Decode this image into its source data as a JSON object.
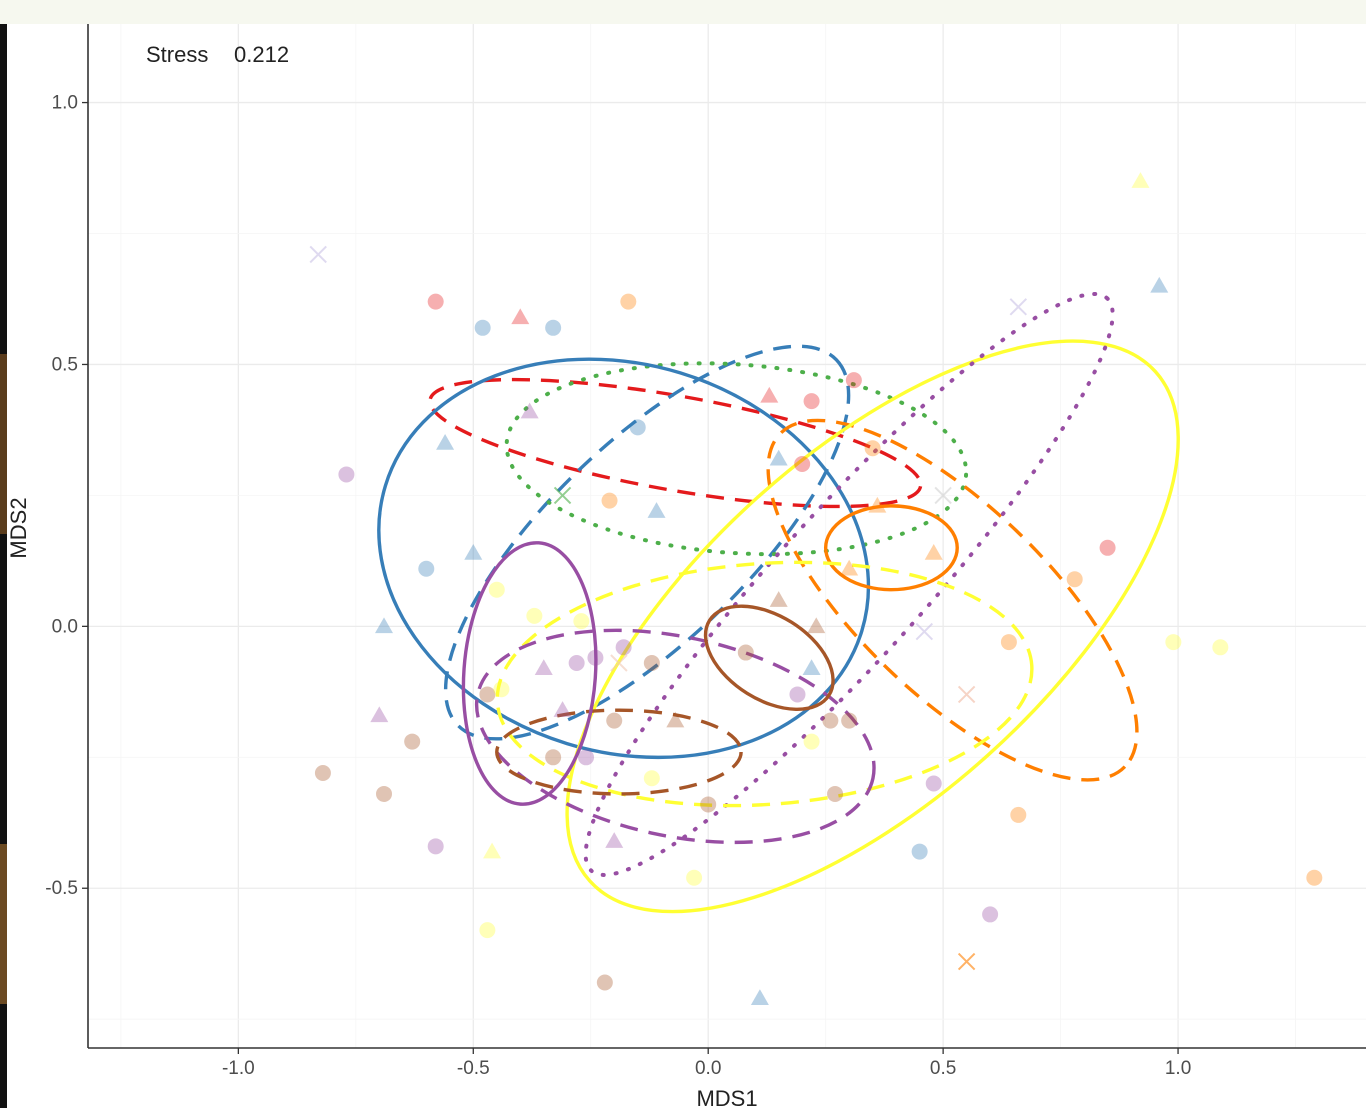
{
  "chart_data": {
    "type": "scatter",
    "title": "",
    "annotation": {
      "label": "Stress",
      "value": "0.212"
    },
    "xlabel": "MDS1",
    "ylabel": "MDS2",
    "xlim": [
      -1.32,
      1.4
    ],
    "ylim": [
      -0.805,
      1.15
    ],
    "x_ticks": [
      {
        "value": -1.0,
        "label": "-1.0"
      },
      {
        "value": -0.5,
        "label": "-0.5"
      },
      {
        "value": 0.0,
        "label": "0.0"
      },
      {
        "value": 0.5,
        "label": "0.5"
      },
      {
        "value": 1.0,
        "label": "1.0"
      }
    ],
    "y_ticks": [
      {
        "value": -0.5,
        "label": "-0.5"
      },
      {
        "value": 0.0,
        "label": "0.0"
      },
      {
        "value": 0.5,
        "label": "0.5"
      },
      {
        "value": 1.0,
        "label": "1.0"
      }
    ],
    "grid": true,
    "legend": "none",
    "colors": {
      "red": "#e41a1c",
      "blue": "#377eb8",
      "green": "#4daf4a",
      "purple": "#984ea3",
      "orange": "#ff7f00",
      "yellow": "#ffff33",
      "brown": "#a65628",
      "plotBorder": "#333333",
      "grid": "#ebebeb"
    },
    "points": [
      {
        "x": -0.83,
        "y": 0.71,
        "color": "#c9c2e6",
        "shape": "cross"
      },
      {
        "x": -0.58,
        "y": 0.62,
        "color": "#e41a1c",
        "shape": "circle"
      },
      {
        "x": -0.48,
        "y": 0.57,
        "color": "#377eb8",
        "shape": "circle"
      },
      {
        "x": -0.4,
        "y": 0.59,
        "color": "#e41a1c",
        "shape": "triangle"
      },
      {
        "x": -0.33,
        "y": 0.57,
        "color": "#377eb8",
        "shape": "circle"
      },
      {
        "x": -0.17,
        "y": 0.62,
        "color": "#ff7f00",
        "shape": "circle"
      },
      {
        "x": -0.38,
        "y": 0.41,
        "color": "#984ea3",
        "shape": "triangle"
      },
      {
        "x": -0.15,
        "y": 0.38,
        "color": "#377eb8",
        "shape": "circle"
      },
      {
        "x": -0.56,
        "y": 0.35,
        "color": "#377eb8",
        "shape": "triangle"
      },
      {
        "x": -0.77,
        "y": 0.29,
        "color": "#984ea3",
        "shape": "circle"
      },
      {
        "x": -0.31,
        "y": 0.25,
        "color": "#4daf4a",
        "shape": "cross"
      },
      {
        "x": -0.21,
        "y": 0.24,
        "color": "#ff7f00",
        "shape": "circle"
      },
      {
        "x": -0.11,
        "y": 0.22,
        "color": "#377eb8",
        "shape": "triangle"
      },
      {
        "x": -0.5,
        "y": 0.14,
        "color": "#377eb8",
        "shape": "triangle"
      },
      {
        "x": -0.6,
        "y": 0.11,
        "color": "#377eb8",
        "shape": "circle"
      },
      {
        "x": -0.69,
        "y": -0.0,
        "color": "#377eb8",
        "shape": "triangle"
      },
      {
        "x": -0.45,
        "y": 0.07,
        "color": "#ffff33",
        "shape": "circle"
      },
      {
        "x": -0.37,
        "y": 0.02,
        "color": "#ffff33",
        "shape": "circle"
      },
      {
        "x": -0.27,
        "y": 0.01,
        "color": "#ffff33",
        "shape": "circle"
      },
      {
        "x": -0.18,
        "y": -0.04,
        "color": "#984ea3",
        "shape": "circle"
      },
      {
        "x": -0.24,
        "y": -0.06,
        "color": "#984ea3",
        "shape": "circle"
      },
      {
        "x": -0.19,
        "y": -0.07,
        "color": "#f0c8b4",
        "shape": "cross"
      },
      {
        "x": -0.12,
        "y": -0.07,
        "color": "#a65628",
        "shape": "circle"
      },
      {
        "x": -0.28,
        "y": -0.07,
        "color": "#984ea3",
        "shape": "circle"
      },
      {
        "x": -0.35,
        "y": -0.08,
        "color": "#984ea3",
        "shape": "triangle"
      },
      {
        "x": -0.47,
        "y": -0.13,
        "color": "#a65628",
        "shape": "circle"
      },
      {
        "x": -0.44,
        "y": -0.12,
        "color": "#ffff33",
        "shape": "circle"
      },
      {
        "x": -0.7,
        "y": -0.17,
        "color": "#984ea3",
        "shape": "triangle"
      },
      {
        "x": -0.31,
        "y": -0.16,
        "color": "#984ea3",
        "shape": "triangle"
      },
      {
        "x": -0.2,
        "y": -0.18,
        "color": "#a65628",
        "shape": "circle"
      },
      {
        "x": -0.07,
        "y": -0.18,
        "color": "#a65628",
        "shape": "triangle"
      },
      {
        "x": -0.63,
        "y": -0.22,
        "color": "#a65628",
        "shape": "circle"
      },
      {
        "x": -0.33,
        "y": -0.25,
        "color": "#a65628",
        "shape": "circle"
      },
      {
        "x": -0.26,
        "y": -0.25,
        "color": "#984ea3",
        "shape": "circle"
      },
      {
        "x": -0.82,
        "y": -0.28,
        "color": "#a65628",
        "shape": "circle"
      },
      {
        "x": -0.69,
        "y": -0.32,
        "color": "#a65628",
        "shape": "circle"
      },
      {
        "x": -0.12,
        "y": -0.29,
        "color": "#ffff33",
        "shape": "circle"
      },
      {
        "x": -0.58,
        "y": -0.42,
        "color": "#984ea3",
        "shape": "circle"
      },
      {
        "x": -0.2,
        "y": -0.41,
        "color": "#984ea3",
        "shape": "triangle"
      },
      {
        "x": -0.46,
        "y": -0.43,
        "color": "#ffff33",
        "shape": "triangle"
      },
      {
        "x": -0.03,
        "y": -0.48,
        "color": "#ffff33",
        "shape": "circle"
      },
      {
        "x": -0.47,
        "y": -0.58,
        "color": "#ffff33",
        "shape": "circle"
      },
      {
        "x": -0.0,
        "y": -0.34,
        "color": "#a65628",
        "shape": "circle"
      },
      {
        "x": 0.08,
        "y": -0.05,
        "color": "#a65628",
        "shape": "circle"
      },
      {
        "x": 0.15,
        "y": 0.05,
        "color": "#a65628",
        "shape": "triangle"
      },
      {
        "x": 0.23,
        "y": -0.0,
        "color": "#a65628",
        "shape": "triangle"
      },
      {
        "x": 0.19,
        "y": -0.13,
        "color": "#984ea3",
        "shape": "circle"
      },
      {
        "x": 0.22,
        "y": -0.08,
        "color": "#377eb8",
        "shape": "triangle"
      },
      {
        "x": 0.26,
        "y": -0.18,
        "color": "#a65628",
        "shape": "circle"
      },
      {
        "x": 0.3,
        "y": -0.18,
        "color": "#a65628",
        "shape": "circle"
      },
      {
        "x": 0.22,
        "y": -0.22,
        "color": "#ffff33",
        "shape": "circle"
      },
      {
        "x": 0.27,
        "y": -0.32,
        "color": "#a65628",
        "shape": "circle"
      },
      {
        "x": 0.13,
        "y": 0.44,
        "color": "#e41a1c",
        "shape": "triangle"
      },
      {
        "x": 0.22,
        "y": 0.43,
        "color": "#e41a1c",
        "shape": "circle"
      },
      {
        "x": 0.31,
        "y": 0.47,
        "color": "#e41a1c",
        "shape": "circle"
      },
      {
        "x": 0.2,
        "y": 0.31,
        "color": "#e41a1c",
        "shape": "circle"
      },
      {
        "x": 0.15,
        "y": 0.32,
        "color": "#377eb8",
        "shape": "triangle"
      },
      {
        "x": 0.35,
        "y": 0.34,
        "color": "#ff7f00",
        "shape": "circle"
      },
      {
        "x": 0.36,
        "y": 0.23,
        "color": "#ff7f00",
        "shape": "triangle"
      },
      {
        "x": 0.48,
        "y": 0.14,
        "color": "#ff7f00",
        "shape": "triangle"
      },
      {
        "x": 0.3,
        "y": 0.11,
        "color": "#ff7f00",
        "shape": "triangle"
      },
      {
        "x": 0.5,
        "y": 0.25,
        "color": "#d0d0d0",
        "shape": "cross"
      },
      {
        "x": 0.46,
        "y": -0.01,
        "color": "#c9c2e6",
        "shape": "cross"
      },
      {
        "x": 0.55,
        "y": -0.13,
        "color": "#f0b8a0",
        "shape": "cross"
      },
      {
        "x": 0.48,
        "y": -0.3,
        "color": "#984ea3",
        "shape": "circle"
      },
      {
        "x": 0.45,
        "y": -0.43,
        "color": "#377eb8",
        "shape": "circle"
      },
      {
        "x": 0.55,
        "y": -0.64,
        "color": "#ff7f00",
        "shape": "cross"
      },
      {
        "x": 0.6,
        "y": -0.55,
        "color": "#984ea3",
        "shape": "circle"
      },
      {
        "x": 0.64,
        "y": -0.03,
        "color": "#ff7f00",
        "shape": "circle"
      },
      {
        "x": 0.66,
        "y": -0.36,
        "color": "#ff7f00",
        "shape": "circle"
      },
      {
        "x": 0.66,
        "y": 0.61,
        "color": "#c9c2e6",
        "shape": "cross"
      },
      {
        "x": 0.78,
        "y": 0.09,
        "color": "#ff7f00",
        "shape": "circle"
      },
      {
        "x": 0.85,
        "y": 0.15,
        "color": "#e41a1c",
        "shape": "circle"
      },
      {
        "x": 0.92,
        "y": 0.85,
        "color": "#ffff33",
        "shape": "triangle"
      },
      {
        "x": 0.96,
        "y": 0.65,
        "color": "#377eb8",
        "shape": "triangle"
      },
      {
        "x": 0.99,
        "y": -0.03,
        "color": "#ffff33",
        "shape": "circle"
      },
      {
        "x": 1.09,
        "y": -0.04,
        "color": "#ffff33",
        "shape": "circle"
      },
      {
        "x": 1.29,
        "y": -0.48,
        "color": "#ff7f00",
        "shape": "circle"
      },
      {
        "x": 0.11,
        "y": -0.71,
        "color": "#377eb8",
        "shape": "triangle"
      },
      {
        "x": -0.22,
        "y": -0.68,
        "color": "#a65628",
        "shape": "circle"
      }
    ],
    "ellipses": [
      {
        "cx": -0.07,
        "cy": 0.35,
        "rx": 0.53,
        "ry": 0.09,
        "angle": -10,
        "color": "#e41a1c",
        "dash": "dashed"
      },
      {
        "cx": -0.13,
        "cy": 0.16,
        "rx": 0.56,
        "ry": 0.19,
        "angle": 44,
        "color": "#377eb8",
        "dash": "dashed"
      },
      {
        "cx": 0.06,
        "cy": 0.32,
        "rx": 0.49,
        "ry": 0.18,
        "angle": -4,
        "color": "#4daf4a",
        "dash": "dotted"
      },
      {
        "cx": -0.18,
        "cy": 0.13,
        "rx": 0.53,
        "ry": 0.37,
        "angle": -17,
        "color": "#377eb8",
        "dash": "solid"
      },
      {
        "cx": 0.39,
        "cy": 0.15,
        "rx": 0.14,
        "ry": 0.08,
        "angle": 0,
        "color": "#ff7f00",
        "dash": "solid"
      },
      {
        "cx": 0.52,
        "cy": 0.05,
        "rx": 0.51,
        "ry": 0.18,
        "angle": -44,
        "color": "#ff7f00",
        "dash": "dashed"
      },
      {
        "cx": 0.35,
        "cy": -0.0,
        "rx": 0.81,
        "ry": 0.33,
        "angle": 42,
        "color": "#ffff33",
        "dash": "solid"
      },
      {
        "cx": 0.3,
        "cy": 0.08,
        "rx": 0.82,
        "ry": 0.14,
        "angle": 48,
        "color": "#984ea3",
        "dash": "dotted"
      },
      {
        "cx": 0.12,
        "cy": -0.11,
        "rx": 0.57,
        "ry": 0.23,
        "angle": 4,
        "color": "#ffff33",
        "dash": "dashed"
      },
      {
        "cx": -0.07,
        "cy": -0.21,
        "rx": 0.43,
        "ry": 0.19,
        "angle": -12,
        "color": "#984ea3",
        "dash": "dashed"
      },
      {
        "cx": -0.19,
        "cy": -0.24,
        "rx": 0.26,
        "ry": 0.08,
        "angle": 0,
        "color": "#a65628",
        "dash": "dashed"
      },
      {
        "cx": -0.38,
        "cy": -0.09,
        "rx": 0.14,
        "ry": 0.25,
        "angle": -4,
        "color": "#984ea3",
        "dash": "solid"
      },
      {
        "cx": 0.13,
        "cy": -0.06,
        "rx": 0.15,
        "ry": 0.08,
        "angle": -32,
        "color": "#a65628",
        "dash": "solid"
      }
    ]
  }
}
